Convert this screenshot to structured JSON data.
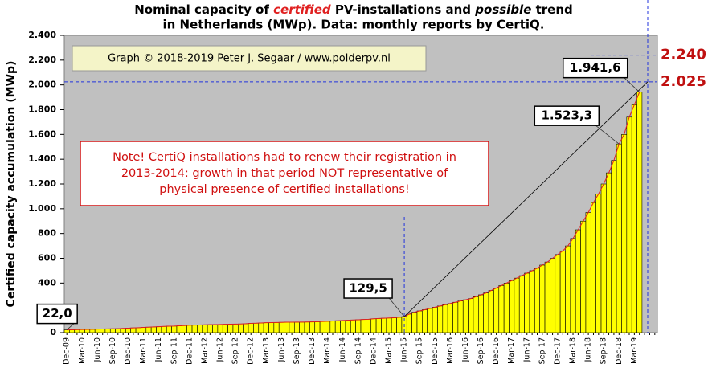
{
  "chart_data": {
    "type": "bar",
    "title_line1": [
      "Nominal capacity of ",
      "certified",
      " PV-installations and ",
      "possible",
      " trend"
    ],
    "title_line2": "in Netherlands (MWp). Data: monthly reports by CertiQ.",
    "y_label": "Certified capacity accumulation (MWp)",
    "credit": "Graph © 2018-2019 Peter J. Segaar / www.polderpv.nl",
    "note": [
      "Note! CertiQ installations had to renew their registration in",
      "2013-2014:  growth in that period NOT representative of",
      "physical presence of certified installations!"
    ],
    "color": "#ffff00",
    "ylim": [
      0,
      2400
    ],
    "yticks": [
      0,
      200,
      400,
      600,
      800,
      {
        "value": 1000,
        "label": "1.000"
      },
      {
        "value": 1200,
        "label": "1.200"
      },
      {
        "value": 1400,
        "label": "1.400"
      },
      {
        "value": 1600,
        "label": "1.600"
      },
      {
        "value": 1800,
        "label": "1.800"
      },
      {
        "value": 2000,
        "label": "2.000"
      },
      {
        "value": 2200,
        "label": "2.200"
      },
      {
        "value": 2400,
        "label": "2.400"
      }
    ],
    "grid": false,
    "reference_lines": [
      {
        "value": 2240,
        "label": "2.240"
      },
      {
        "value": 2025,
        "label": "2.025"
      }
    ],
    "categories": [
      "Dec-09",
      null,
      null,
      "Mar-10",
      null,
      null,
      "Jun-10",
      null,
      null,
      "Sep-10",
      null,
      null,
      "Dec-10",
      null,
      null,
      "Mar-11",
      null,
      null,
      "Jun-11",
      null,
      null,
      "Sep-11",
      null,
      null,
      "Dec-11",
      null,
      null,
      "Mar-12",
      null,
      null,
      "Jun-12",
      null,
      null,
      "Sep-12",
      null,
      null,
      "Dec-12",
      null,
      null,
      "Mar-13",
      null,
      null,
      "Jun-13",
      null,
      null,
      "Sep-13",
      null,
      null,
      "Dec-13",
      null,
      null,
      "Mar-14",
      null,
      null,
      "Jun-14",
      null,
      null,
      "Sep-14",
      null,
      null,
      "Dec-14",
      null,
      null,
      "Mar-15",
      null,
      null,
      "Jun-15",
      null,
      null,
      "Sep-15",
      null,
      null,
      "Dec-15",
      null,
      null,
      "Mar-16",
      null,
      null,
      "Jun-16",
      null,
      null,
      "Sep-16",
      null,
      null,
      "Dec-16",
      null,
      null,
      "Mar-17",
      null,
      null,
      "Jun-17",
      null,
      null,
      "Sep-17",
      null,
      null,
      "Dec-17",
      null,
      null,
      "Mar-18",
      null,
      null,
      "Jun-18",
      null,
      null,
      "Sep-18",
      null,
      null,
      "Dec-18",
      null,
      null,
      "Mar-19",
      null,
      null,
      null,
      null
    ],
    "values": [
      22.0,
      23,
      24,
      25,
      26,
      27,
      28,
      29,
      30,
      31,
      32,
      34,
      36,
      38,
      40,
      42,
      44,
      46,
      48,
      50,
      52,
      53,
      55,
      57,
      60,
      61,
      62,
      63,
      64,
      65,
      66,
      67,
      68,
      69,
      70,
      72,
      75,
      76,
      78,
      80,
      81,
      82,
      83,
      84,
      84,
      85,
      85,
      86,
      87,
      88,
      90,
      92,
      94,
      96,
      98,
      100,
      102,
      104,
      106,
      108,
      112,
      114,
      116,
      118,
      120,
      124,
      129.5,
      150,
      165,
      175,
      185,
      195,
      205,
      215,
      225,
      235,
      245,
      255,
      265,
      275,
      290,
      305,
      320,
      340,
      360,
      380,
      400,
      420,
      440,
      460,
      480,
      500,
      520,
      545,
      570,
      600,
      630,
      660,
      700,
      760,
      830,
      900,
      970,
      1050,
      1120,
      1200,
      1290,
      1390,
      1523.3,
      1600,
      1740,
      1840,
      1941.6,
      null,
      null,
      null
    ],
    "value_labels": [
      "22,0",
      null,
      null,
      null,
      null,
      null,
      null,
      null,
      null,
      null,
      null,
      null,
      null,
      null,
      null,
      null,
      null,
      null,
      null,
      null,
      null,
      null,
      null,
      null,
      null,
      null,
      null,
      null,
      null,
      null,
      null,
      null,
      null,
      null,
      null,
      null,
      null,
      null,
      null,
      null,
      null,
      null,
      null,
      null,
      null,
      null,
      null,
      null,
      null,
      null,
      null,
      null,
      null,
      null,
      null,
      null,
      null,
      null,
      null,
      null,
      null,
      null,
      null,
      null,
      null,
      null,
      "129,5",
      null,
      null,
      null,
      null,
      null,
      null,
      null,
      null,
      null,
      null,
      null,
      null,
      null,
      null,
      null,
      null,
      null,
      null,
      null,
      null,
      null,
      null,
      null,
      null,
      null,
      null,
      null,
      null,
      null,
      null,
      null,
      null,
      null,
      null,
      null,
      null,
      null,
      null,
      null,
      null,
      null,
      "1.523,3",
      null,
      null,
      null,
      "1.941,6",
      null,
      null,
      null
    ]
  }
}
